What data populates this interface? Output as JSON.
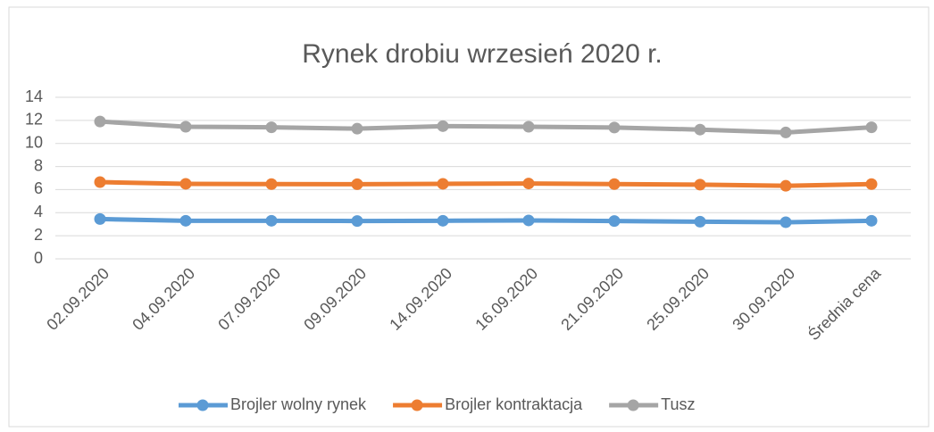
{
  "chart_data": {
    "type": "line",
    "title": "Rynek drobiu wrzesień 2020 r.",
    "categories": [
      "02.09.2020",
      "04.09.2020",
      "07.09.2020",
      "09.09.2020",
      "14.09.2020",
      "16.09.2020",
      "21.09.2020",
      "25.09.2020",
      "30.09.2020",
      "Średnia cena"
    ],
    "series": [
      {
        "name": "Brojler wolny rynek",
        "color": "#5b9bd5",
        "values": [
          3.45,
          3.3,
          3.3,
          3.28,
          3.3,
          3.33,
          3.28,
          3.22,
          3.17,
          3.3
        ]
      },
      {
        "name": "Brojler kontraktacja",
        "color": "#ed7d31",
        "values": [
          6.65,
          6.5,
          6.48,
          6.47,
          6.5,
          6.53,
          6.48,
          6.43,
          6.33,
          6.48
        ]
      },
      {
        "name": "Tusz",
        "color": "#a5a5a5",
        "values": [
          11.9,
          11.45,
          11.4,
          11.28,
          11.5,
          11.45,
          11.38,
          11.2,
          10.95,
          11.4
        ]
      }
    ],
    "ylim": [
      0,
      14
    ],
    "yticks": [
      0,
      2,
      4,
      6,
      8,
      10,
      12,
      14
    ],
    "grid": true,
    "legend": "bottom"
  }
}
